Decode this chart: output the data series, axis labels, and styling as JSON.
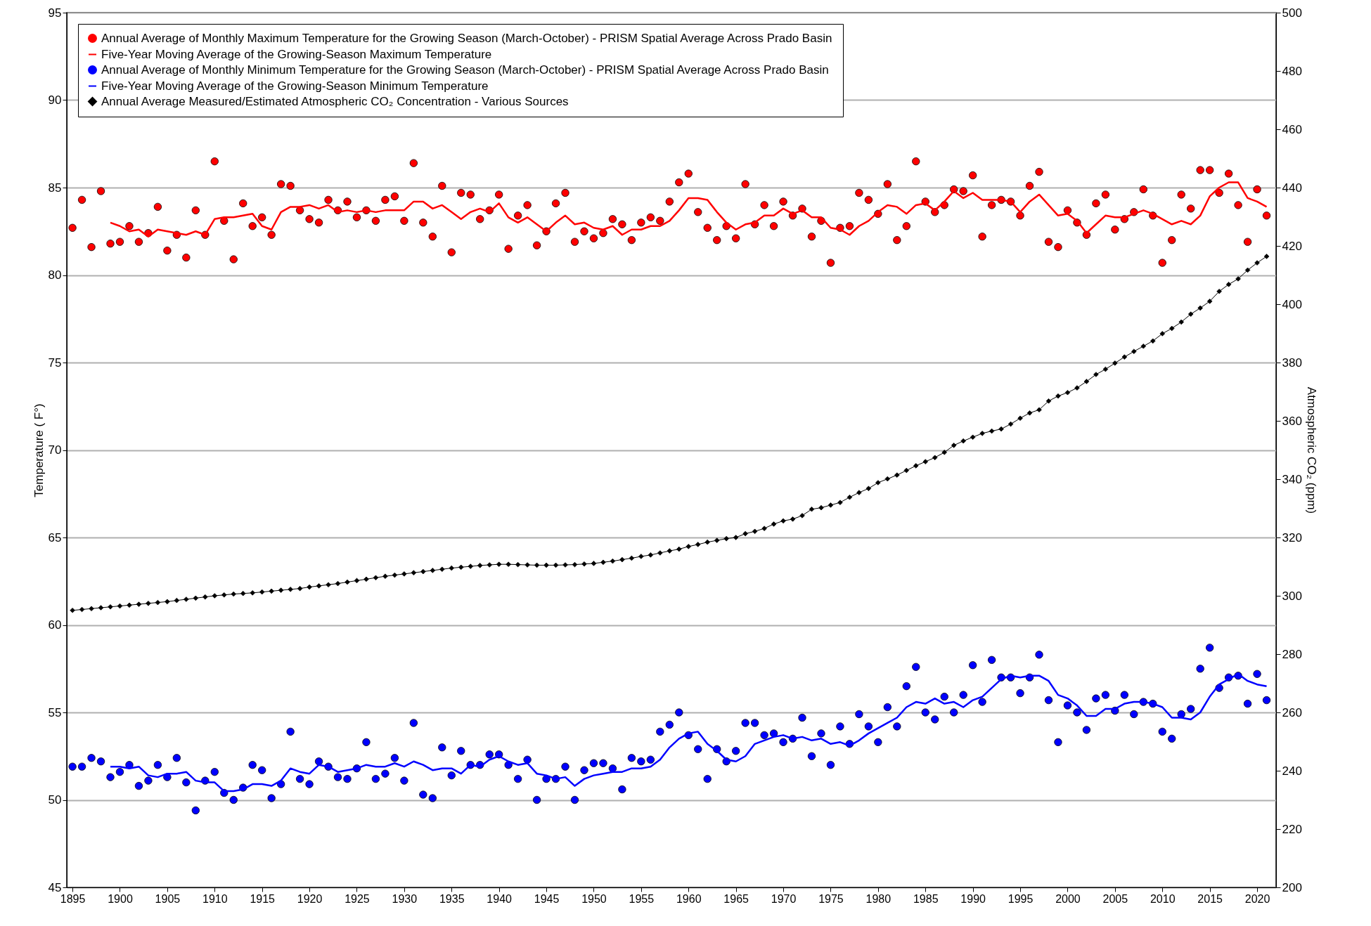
{
  "chart_data": {
    "type": "scatter",
    "ylabel": "Temperature ( F°)",
    "y2label": "Atmospheric CO₂ (ppm)",
    "grid": "y",
    "legend": "top left",
    "x": [
      1895,
      1896,
      1897,
      1898,
      1899,
      1900,
      1901,
      1902,
      1903,
      1904,
      1905,
      1906,
      1907,
      1908,
      1909,
      1910,
      1911,
      1912,
      1913,
      1914,
      1915,
      1916,
      1917,
      1918,
      1919,
      1920,
      1921,
      1922,
      1923,
      1924,
      1925,
      1926,
      1927,
      1928,
      1929,
      1930,
      1931,
      1932,
      1933,
      1934,
      1935,
      1936,
      1937,
      1938,
      1939,
      1940,
      1941,
      1942,
      1943,
      1944,
      1945,
      1946,
      1947,
      1948,
      1949,
      1950,
      1951,
      1952,
      1953,
      1954,
      1955,
      1956,
      1957,
      1958,
      1959,
      1960,
      1961,
      1962,
      1963,
      1964,
      1965,
      1966,
      1967,
      1968,
      1969,
      1970,
      1971,
      1972,
      1973,
      1974,
      1975,
      1976,
      1977,
      1978,
      1979,
      1980,
      1981,
      1982,
      1983,
      1984,
      1985,
      1986,
      1987,
      1988,
      1989,
      1990,
      1991,
      1992,
      1993,
      1994,
      1995,
      1996,
      1997,
      1998,
      1999,
      2000,
      2001,
      2002,
      2003,
      2004,
      2005,
      2006,
      2007,
      2008,
      2009,
      2010,
      2011,
      2012,
      2013,
      2014,
      2015,
      2016,
      2017,
      2018,
      2019,
      2020,
      2021
    ],
    "xlim": [
      1894.4,
      2022
    ],
    "xticks": [
      1895,
      1900,
      1905,
      1910,
      1915,
      1920,
      1925,
      1930,
      1935,
      1940,
      1945,
      1950,
      1955,
      1960,
      1965,
      1970,
      1975,
      1980,
      1985,
      1990,
      1995,
      2000,
      2005,
      2010,
      2015,
      2020
    ],
    "ylim": [
      45,
      95
    ],
    "yticks": [
      45,
      50,
      55,
      60,
      65,
      70,
      75,
      80,
      85,
      90,
      95
    ],
    "y2lim": [
      200,
      500
    ],
    "y2ticks": [
      200,
      220,
      240,
      260,
      280,
      300,
      320,
      340,
      360,
      380,
      400,
      420,
      440,
      460,
      480,
      500
    ],
    "series": [
      {
        "name": "Annual Average of Monthly Maximum Temperature for the Growing Season (March-October) - PRISM Spatial Average Across Prado Basin",
        "marker": "circle",
        "color": "#ff0000",
        "values": [
          82.7,
          84.3,
          81.6,
          84.8,
          81.8,
          81.9,
          82.8,
          81.9,
          82.4,
          83.9,
          81.4,
          82.3,
          81.0,
          83.7,
          82.3,
          86.5,
          83.1,
          80.9,
          84.1,
          82.8,
          83.3,
          82.3,
          85.2,
          85.1,
          83.7,
          83.2,
          83.0,
          84.3,
          83.7,
          84.2,
          83.3,
          83.7,
          83.1,
          84.3,
          84.5,
          83.1,
          86.4,
          83.0,
          82.2,
          85.1,
          81.3,
          84.7,
          84.6,
          83.2,
          83.7,
          84.6,
          81.5,
          83.4,
          84.0,
          81.7,
          82.5,
          84.1,
          84.7,
          81.9,
          82.5,
          82.1,
          82.4,
          83.2,
          82.9,
          82.0,
          83.0,
          83.3,
          83.1,
          84.2,
          85.3,
          85.8,
          83.6,
          82.7,
          82.0,
          82.8,
          82.1,
          85.2,
          82.9,
          84.0,
          82.8,
          84.2,
          83.4,
          83.8,
          82.2,
          83.1,
          80.7,
          82.7,
          82.8,
          84.7,
          84.3,
          83.5,
          85.2,
          82.0,
          82.8,
          86.5,
          84.2,
          83.6,
          84.0,
          84.9,
          84.8,
          85.7,
          82.2,
          84.0,
          84.3,
          84.2,
          83.4,
          85.1,
          85.9,
          81.9,
          81.6,
          83.7,
          83.0,
          82.3,
          84.1,
          84.6,
          82.6,
          83.2,
          83.6,
          84.9,
          83.4,
          80.7,
          82.0,
          84.6,
          83.8,
          86.0,
          86.0,
          84.7,
          85.8,
          84.0,
          81.9,
          84.9,
          83.4
        ]
      },
      {
        "name": "Five-Year Moving Average of the Growing-Season Maximum Temperature",
        "type": "line",
        "marker": "none",
        "color": "#ff0000",
        "x": [
          1899,
          1900,
          1901,
          1902,
          1903,
          1904,
          1905,
          1906,
          1907,
          1908,
          1909,
          1910,
          1911,
          1912,
          1913,
          1914,
          1915,
          1916,
          1917,
          1918,
          1919,
          1920,
          1921,
          1922,
          1923,
          1924,
          1925,
          1926,
          1927,
          1928,
          1929,
          1930,
          1931,
          1932,
          1933,
          1934,
          1935,
          1936,
          1937,
          1938,
          1939,
          1940,
          1941,
          1942,
          1943,
          1944,
          1945,
          1946,
          1947,
          1948,
          1949,
          1950,
          1951,
          1952,
          1953,
          1954,
          1955,
          1956,
          1957,
          1958,
          1959,
          1960,
          1961,
          1962,
          1963,
          1964,
          1965,
          1966,
          1967,
          1968,
          1969,
          1970,
          1971,
          1972,
          1973,
          1974,
          1975,
          1976,
          1977,
          1978,
          1979,
          1980,
          1981,
          1982,
          1983,
          1984,
          1985,
          1986,
          1987,
          1988,
          1989,
          1990,
          1991,
          1992,
          1993,
          1994,
          1995,
          1996,
          1997,
          1998,
          1999,
          2000,
          2001,
          2002,
          2003,
          2004,
          2005,
          2006,
          2007,
          2008,
          2009,
          2010,
          2011,
          2012,
          2013,
          2014,
          2015,
          2016,
          2017,
          2018,
          2019,
          2020,
          2021
        ],
        "values": [
          83.0,
          82.8,
          82.5,
          82.6,
          82.2,
          82.6,
          82.5,
          82.4,
          82.3,
          82.5,
          82.3,
          83.2,
          83.3,
          83.3,
          83.4,
          83.5,
          82.8,
          82.6,
          83.6,
          83.9,
          83.9,
          84.0,
          83.8,
          84.0,
          83.6,
          83.7,
          83.6,
          83.7,
          83.6,
          83.7,
          83.7,
          83.7,
          84.2,
          84.2,
          83.8,
          84.0,
          83.6,
          83.2,
          83.6,
          83.8,
          83.6,
          84.1,
          83.3,
          83.0,
          83.3,
          82.9,
          82.5,
          83.0,
          83.4,
          82.9,
          83.0,
          82.7,
          82.6,
          82.8,
          82.3,
          82.6,
          82.6,
          82.8,
          82.8,
          83.1,
          83.7,
          84.4,
          84.4,
          84.3,
          83.6,
          83.0,
          82.6,
          82.9,
          83.0,
          83.4,
          83.4,
          83.8,
          83.5,
          83.7,
          83.3,
          83.3,
          82.7,
          82.6,
          82.3,
          82.8,
          83.1,
          83.6,
          84.0,
          83.9,
          83.5,
          84.0,
          84.1,
          83.7,
          84.2,
          84.8,
          84.4,
          84.7,
          84.3,
          84.3,
          84.3,
          84.2,
          83.6,
          84.2,
          84.6,
          84.0,
          83.4,
          83.5,
          83.1,
          82.4,
          82.9,
          83.4,
          83.3,
          83.3,
          83.5,
          83.7,
          83.5,
          83.2,
          82.9,
          83.1,
          82.9,
          83.4,
          84.5,
          85.0,
          85.3,
          85.3,
          84.4,
          84.2,
          83.9
        ]
      },
      {
        "name": "Annual Average of Monthly Minimum Temperature for the Growing Season (March-October) - PRISM Spatial Average Across Prado Basin",
        "marker": "circle",
        "color": "#0000ff",
        "values": [
          51.9,
          51.9,
          52.4,
          52.2,
          51.3,
          51.6,
          52.0,
          50.8,
          51.1,
          52.0,
          51.3,
          52.4,
          51.0,
          49.4,
          51.1,
          51.6,
          50.4,
          50.0,
          50.7,
          52.0,
          51.7,
          50.1,
          50.9,
          53.9,
          51.2,
          50.9,
          52.2,
          51.9,
          51.3,
          51.2,
          51.8,
          53.3,
          51.2,
          51.5,
          52.4,
          51.1,
          54.4,
          50.3,
          50.1,
          53.0,
          51.4,
          52.8,
          52.0,
          52.0,
          52.6,
          52.6,
          52.0,
          51.2,
          52.3,
          50.0,
          51.2,
          51.2,
          51.9,
          50.0,
          51.7,
          52.1,
          52.1,
          51.8,
          50.6,
          52.4,
          52.2,
          52.3,
          53.9,
          54.3,
          55.0,
          53.7,
          52.9,
          51.2,
          52.9,
          52.2,
          52.8,
          54.4,
          54.4,
          53.7,
          53.8,
          53.3,
          53.5,
          54.7,
          52.5,
          53.8,
          52.0,
          54.2,
          53.2,
          54.9,
          54.2,
          53.3,
          55.3,
          54.2,
          56.5,
          57.6,
          55.0,
          54.6,
          55.9,
          55.0,
          56.0,
          57.7,
          55.6,
          58.0,
          57.0,
          57.0,
          56.1,
          57.0,
          58.3,
          55.7,
          53.3,
          55.4,
          55.0,
          54.0,
          55.8,
          56.0,
          55.1,
          56.0,
          54.9,
          55.6,
          55.5,
          53.9,
          53.5,
          54.9,
          55.2,
          57.5,
          58.7,
          56.4,
          57.0,
          57.1,
          55.5,
          57.2,
          55.7
        ]
      },
      {
        "name": "Five-Year Moving Average of the Growing-Season Minimum Temperature",
        "type": "line",
        "marker": "none",
        "color": "#0000ff",
        "x": [
          1899,
          1900,
          1901,
          1902,
          1903,
          1904,
          1905,
          1906,
          1907,
          1908,
          1909,
          1910,
          1911,
          1912,
          1913,
          1914,
          1915,
          1916,
          1917,
          1918,
          1919,
          1920,
          1921,
          1922,
          1923,
          1924,
          1925,
          1926,
          1927,
          1928,
          1929,
          1930,
          1931,
          1932,
          1933,
          1934,
          1935,
          1936,
          1937,
          1938,
          1939,
          1940,
          1941,
          1942,
          1943,
          1944,
          1945,
          1946,
          1947,
          1948,
          1949,
          1950,
          1951,
          1952,
          1953,
          1954,
          1955,
          1956,
          1957,
          1958,
          1959,
          1960,
          1961,
          1962,
          1963,
          1964,
          1965,
          1966,
          1967,
          1968,
          1969,
          1970,
          1971,
          1972,
          1973,
          1974,
          1975,
          1976,
          1977,
          1978,
          1979,
          1980,
          1981,
          1982,
          1983,
          1984,
          1985,
          1986,
          1987,
          1988,
          1989,
          1990,
          1991,
          1992,
          1993,
          1994,
          1995,
          1996,
          1997,
          1998,
          1999,
          2000,
          2001,
          2002,
          2003,
          2004,
          2005,
          2006,
          2007,
          2008,
          2009,
          2010,
          2011,
          2012,
          2013,
          2014,
          2015,
          2016,
          2017,
          2018,
          2019,
          2020,
          2021
        ],
        "values": [
          51.9,
          51.9,
          51.8,
          51.9,
          51.4,
          51.3,
          51.5,
          51.5,
          51.6,
          51.1,
          51.0,
          51.0,
          50.5,
          50.5,
          50.6,
          50.9,
          50.9,
          50.8,
          51.1,
          51.8,
          51.6,
          51.5,
          52.0,
          51.9,
          51.6,
          51.7,
          51.8,
          52.0,
          51.9,
          51.9,
          52.1,
          51.9,
          52.2,
          52.0,
          51.7,
          51.8,
          51.8,
          51.5,
          52.0,
          51.9,
          52.3,
          52.5,
          52.2,
          52.0,
          52.1,
          51.5,
          51.4,
          51.2,
          51.3,
          50.8,
          51.2,
          51.4,
          51.5,
          51.6,
          51.6,
          51.8,
          51.8,
          51.9,
          52.3,
          53.0,
          53.5,
          53.8,
          53.9,
          53.2,
          52.8,
          52.3,
          52.2,
          52.5,
          53.2,
          53.4,
          53.6,
          53.7,
          53.5,
          53.6,
          53.4,
          53.5,
          53.2,
          53.3,
          53.1,
          53.4,
          53.8,
          54.1,
          54.4,
          54.7,
          55.3,
          55.6,
          55.5,
          55.8,
          55.5,
          55.6,
          55.3,
          55.7,
          55.9,
          56.4,
          56.9,
          57.1,
          57.0,
          57.1,
          57.1,
          56.8,
          56.0,
          55.8,
          55.4,
          54.8,
          54.8,
          55.2,
          55.2,
          55.5,
          55.6,
          55.6,
          55.5,
          55.3,
          54.7,
          54.7,
          54.6,
          55.0,
          55.9,
          56.6,
          56.9,
          57.2,
          56.8,
          56.6,
          56.5
        ]
      },
      {
        "name": "Annual Average Measured/Estimated Atmospheric CO₂ Concentration - Various Sources",
        "type": "line",
        "marker": "diamond",
        "axis": "y2",
        "color": "#000000",
        "values": [
          295.0,
          295.3,
          295.6,
          295.9,
          296.2,
          296.5,
          296.8,
          297.1,
          297.4,
          297.7,
          298.0,
          298.4,
          298.8,
          299.2,
          299.6,
          300.0,
          300.3,
          300.6,
          300.8,
          301.0,
          301.3,
          301.6,
          301.9,
          302.2,
          302.5,
          303.0,
          303.4,
          303.8,
          304.2,
          304.7,
          305.2,
          305.7,
          306.2,
          306.7,
          307.1,
          307.5,
          307.9,
          308.3,
          308.7,
          309.1,
          309.5,
          309.8,
          310.1,
          310.4,
          310.6,
          310.8,
          310.8,
          310.7,
          310.6,
          310.5,
          310.5,
          310.5,
          310.6,
          310.7,
          310.9,
          311.1,
          311.5,
          311.9,
          312.4,
          312.9,
          313.5,
          314.0,
          314.7,
          315.4,
          316.0,
          316.9,
          317.6,
          318.4,
          319.0,
          319.6,
          320.0,
          321.3,
          322.1,
          323.1,
          324.6,
          325.7,
          326.3,
          327.5,
          329.7,
          330.2,
          331.1,
          332.0,
          333.8,
          335.4,
          336.8,
          338.8,
          340.1,
          341.4,
          343.0,
          344.6,
          346.0,
          347.4,
          349.2,
          351.6,
          353.1,
          354.4,
          355.7,
          356.5,
          357.2,
          358.9,
          360.9,
          362.7,
          363.8,
          366.8,
          368.5,
          369.7,
          371.3,
          373.5,
          375.9,
          377.7,
          379.8,
          381.9,
          383.8,
          385.6,
          387.4,
          389.9,
          391.7,
          393.9,
          396.6,
          398.7,
          401.0,
          404.4,
          406.8,
          408.7,
          411.7,
          414.2,
          416.4
        ]
      }
    ]
  }
}
